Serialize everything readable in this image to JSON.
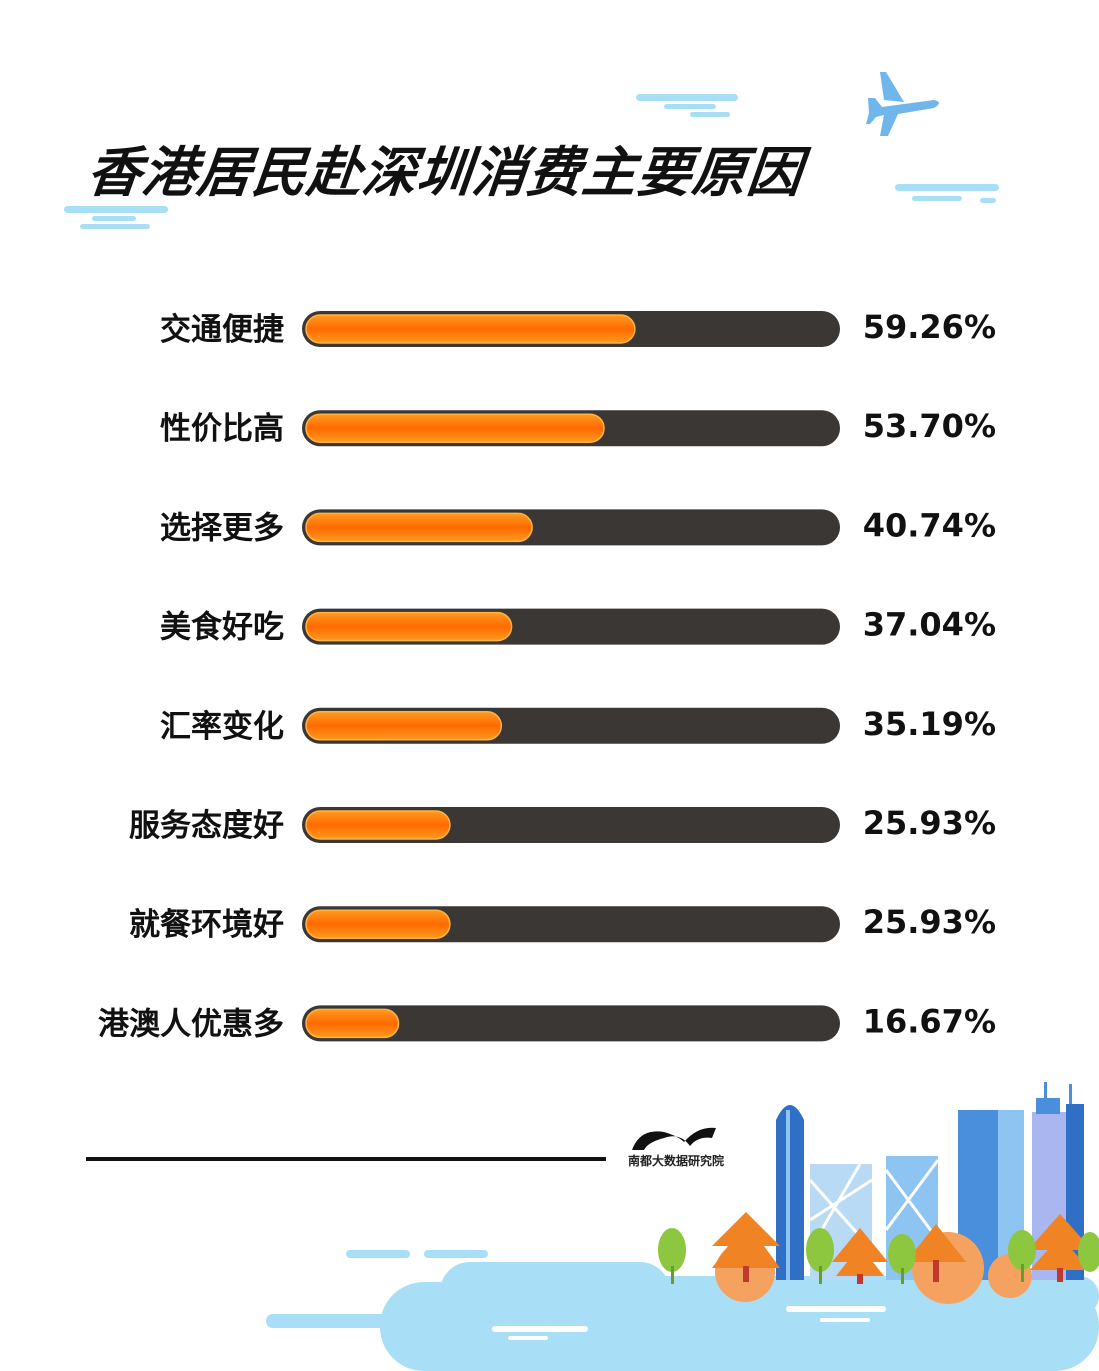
{
  "title": "香港居民赴深圳消费主要原因",
  "logo": {
    "text": "南都大数据研究院"
  },
  "colors": {
    "accent": "#ff6a00",
    "track": "#3b3735",
    "text": "#111111"
  },
  "chart_data": {
    "type": "bar",
    "orientation": "horizontal",
    "title": "香港居民赴深圳消费主要原因",
    "categories": [
      "交通便捷",
      "性价比高",
      "选择更多",
      "美食好吃",
      "汇率变化",
      "服务态度好",
      "就餐环境好",
      "港澳人优惠多"
    ],
    "values": [
      59.26,
      53.7,
      40.74,
      37.04,
      35.19,
      25.93,
      25.93,
      16.67
    ],
    "value_labels": [
      "59.26%",
      "53.70%",
      "40.74%",
      "37.04%",
      "35.19%",
      "25.93%",
      "25.93%",
      "16.67%"
    ],
    "xlim": [
      0,
      100
    ],
    "grid": false,
    "legend": "none"
  }
}
